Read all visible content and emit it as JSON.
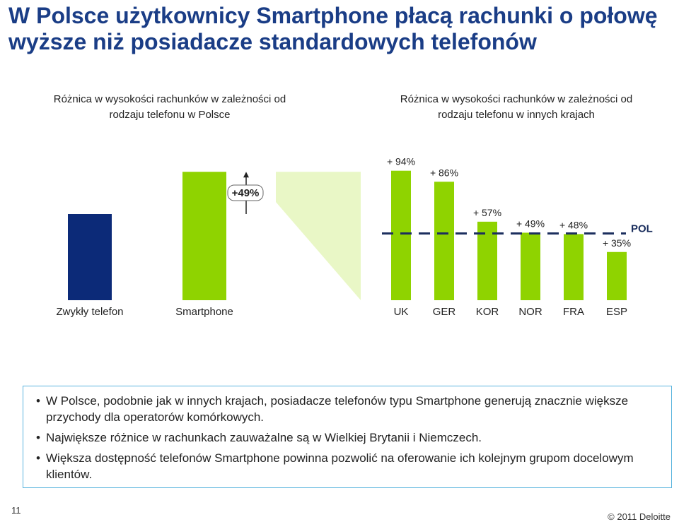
{
  "slide": {
    "title": "W Polsce użytkownicy Smartphone płacą rachunki o połowę wyższe niż posiadacze standardowych telefonów",
    "page_number": "11",
    "copyright": "© 2011 Deloitte"
  },
  "colors": {
    "navy": "#0c2a78",
    "green": "#8fd300",
    "light_green": "#e9f7c6",
    "box_border": "#5ab4de"
  },
  "chart_data": [
    {
      "type": "bar",
      "title": "Różnica w wysokości rachunków w zależności od rodzaju telefonu w Polsce",
      "categories": [
        "Zwykły telefon",
        "Smartphone"
      ],
      "values": [
        100,
        149
      ],
      "colors": [
        "#0c2a78",
        "#8fd300"
      ],
      "annotation": "+49%"
    },
    {
      "type": "bar",
      "title": "Różnica w wysokości rachunków w zależności od rodzaju telefonu w innych krajach",
      "categories": [
        "UK",
        "GER",
        "KOR",
        "NOR",
        "FRA",
        "ESP"
      ],
      "values": [
        94,
        86,
        57,
        49,
        48,
        35
      ],
      "labels": [
        "+ 94%",
        "+ 86%",
        "+ 57%",
        "+ 49%",
        "+ 48%",
        "+ 35%"
      ],
      "reference_line": {
        "label": "POL",
        "value": 49
      }
    }
  ],
  "bullets": [
    "W Polsce, podobnie jak w innych krajach, posiadacze telefonów typu Smartphone generują znacznie większe przychody dla operatorów komórkowych.",
    "Największe różnice w rachunkach zauważalne są w Wielkiej Brytanii i Niemczech.",
    "Większa dostępność telefonów Smartphone powinna pozwolić na oferowanie ich kolejnym grupom docelowym klientów."
  ]
}
